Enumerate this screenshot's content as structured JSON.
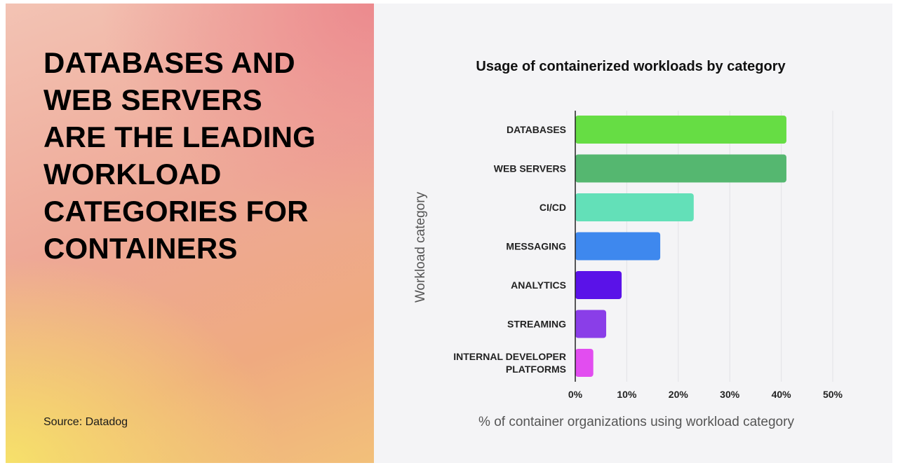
{
  "headline": "DATABASES AND\nWEB SERVERS\nARE THE LEADING\nWORKLOAD\nCATEGORIES FOR\nCONTAINERS",
  "source": "Source: Datadog",
  "chart_data": {
    "type": "bar",
    "orientation": "horizontal",
    "title": "Usage of containerized workloads by category",
    "xlabel": "% of container organizations using workload category",
    "ylabel": "Workload category",
    "categories": [
      [
        "DATABASES"
      ],
      [
        "WEB SERVERS"
      ],
      [
        "CI/CD"
      ],
      [
        "MESSAGING"
      ],
      [
        "ANALYTICS"
      ],
      [
        "STREAMING"
      ],
      [
        "INTERNAL DEVELOPER",
        "PLATFORMS"
      ]
    ],
    "values": [
      41,
      41,
      23,
      16.5,
      9,
      6,
      3.5
    ],
    "colors": [
      "#66dd44",
      "#55b770",
      "#63e0b8",
      "#3e88ee",
      "#5a12e8",
      "#8a3ee8",
      "#e24df0"
    ],
    "xlim": [
      0,
      50
    ],
    "xticks": [
      "0%",
      "10%",
      "20%",
      "30%",
      "40%",
      "50%"
    ],
    "grid": true
  }
}
